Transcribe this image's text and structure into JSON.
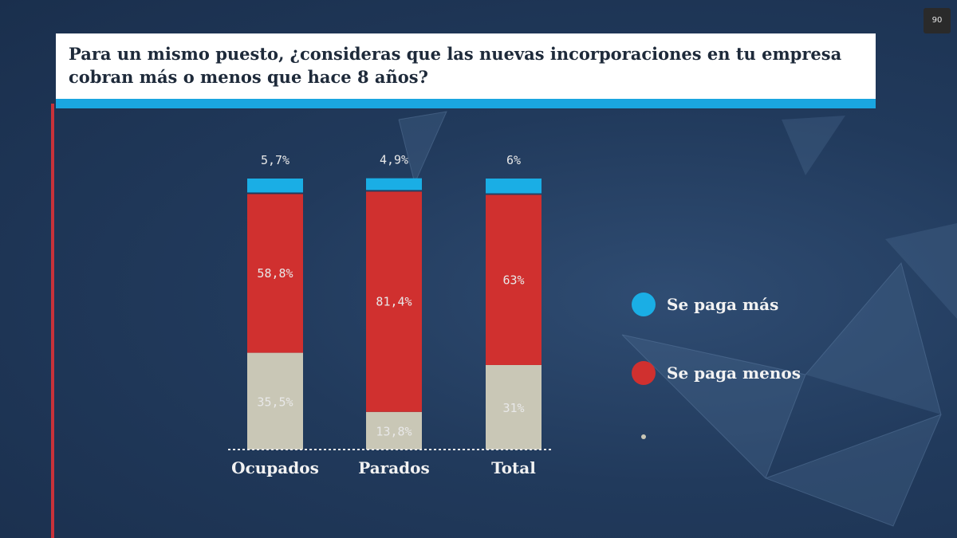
{
  "title": "Para un mismo puesto, ¿consideras que las nuevas incorporaciones en tu empresa cobran más o menos que hace 8 años?",
  "corner_badge": "90",
  "colors": {
    "se_paga_mas": "#1aaee5",
    "se_paga_menos": "#d0302f",
    "third": "#c9c7b6",
    "title_underline": "#1aa6e0",
    "accent_line": "#c8323a"
  },
  "legend": [
    {
      "label": "Se paga más",
      "color": "#1aaee5"
    },
    {
      "label": "Se paga menos",
      "color": "#d0302f"
    },
    {
      "label": "",
      "color": "#c9c7b6"
    }
  ],
  "chart_data": {
    "type": "bar",
    "stacked": true,
    "categories": [
      "Ocupados",
      "Parados",
      "Total"
    ],
    "series": [
      {
        "name": "",
        "values": [
          35.5,
          13.8,
          31
        ],
        "labels": [
          "35,5%",
          "13,8%",
          "31%"
        ],
        "color": "#c9c7b6"
      },
      {
        "name": "Se paga menos",
        "values": [
          58.8,
          81.4,
          63
        ],
        "labels": [
          "58,8%",
          "81,4%",
          "63%"
        ],
        "color": "#d0302f"
      },
      {
        "name": "Se paga más",
        "values": [
          5.7,
          4.9,
          6
        ],
        "labels": [
          "5,7%",
          "4,9%",
          "6%"
        ],
        "color": "#1aaee5"
      }
    ],
    "ylim": [
      0,
      100
    ],
    "legend_position": "right",
    "grid": false
  }
}
